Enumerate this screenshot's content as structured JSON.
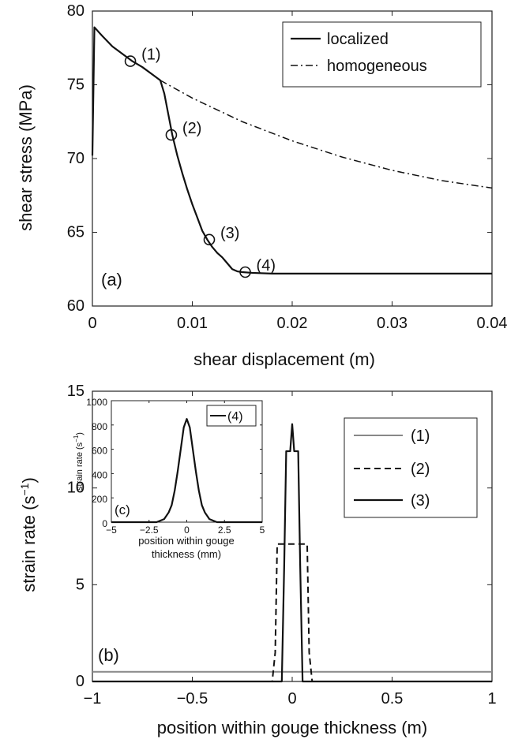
{
  "chart_data": [
    {
      "panel": "(a)",
      "type": "line",
      "xlabel": "shear displacement (m)",
      "ylabel": "shear stress (MPa)",
      "xlim": [
        0,
        0.04
      ],
      "ylim": [
        60,
        80
      ],
      "xticks": [
        "0",
        "0.01",
        "0.02",
        "0.03",
        "0.04"
      ],
      "yticks": [
        "60",
        "65",
        "70",
        "75",
        "80"
      ],
      "legend_position": "top-right",
      "series": [
        {
          "name": "localized",
          "style": "solid",
          "x": [
            0,
            0.0002,
            0.001,
            0.002,
            0.003,
            0.004,
            0.005,
            0.006,
            0.0068,
            0.0072,
            0.0076,
            0.008,
            0.0085,
            0.009,
            0.0095,
            0.01,
            0.0105,
            0.011,
            0.0115,
            0.012,
            0.0125,
            0.013,
            0.0135,
            0.014,
            0.0145,
            0.015,
            0.016,
            0.018,
            0.02,
            0.025,
            0.03,
            0.035,
            0.04
          ],
          "y": [
            70.2,
            78.9,
            78.3,
            77.6,
            77.1,
            76.6,
            76.2,
            75.7,
            75.3,
            74.4,
            73.0,
            71.6,
            70.2,
            69.0,
            67.9,
            66.9,
            66.0,
            65.1,
            64.5,
            64.0,
            63.6,
            63.3,
            62.9,
            62.5,
            62.35,
            62.3,
            62.25,
            62.2,
            62.2,
            62.2,
            62.2,
            62.2,
            62.2
          ]
        },
        {
          "name": "homogeneous",
          "style": "dash-dot",
          "x": [
            0.0068,
            0.01,
            0.015,
            0.02,
            0.025,
            0.03,
            0.035,
            0.04
          ],
          "y": [
            75.3,
            74.1,
            72.5,
            71.2,
            70.1,
            69.2,
            68.5,
            68.0
          ]
        }
      ],
      "markers": [
        {
          "label": "(1)",
          "x": 0.0038,
          "y": 76.6
        },
        {
          "label": "(2)",
          "x": 0.0079,
          "y": 71.6
        },
        {
          "label": "(3)",
          "x": 0.0117,
          "y": 64.5
        },
        {
          "label": "(4)",
          "x": 0.0153,
          "y": 62.3
        }
      ]
    },
    {
      "panel": "(b)",
      "type": "line",
      "xlabel": "position within gouge thickness (m)",
      "ylabel": "strain rate (s",
      "ylabel_sup": "−1",
      "ylabel_close": ")",
      "xlim": [
        -1,
        1
      ],
      "ylim": [
        0,
        15
      ],
      "xticks": [
        "−1",
        "−0.5",
        "0",
        "0.5",
        "1"
      ],
      "yticks": [
        "0",
        "5",
        "10",
        "15"
      ],
      "legend_position": "right",
      "series": [
        {
          "name": "(1)",
          "style": "solid-gray",
          "x": [
            -1,
            1
          ],
          "y": [
            0.5,
            0.5
          ]
        },
        {
          "name": "(2)",
          "style": "dashed",
          "x": [
            -1,
            -0.1,
            -0.085,
            -0.075,
            0.075,
            0.085,
            0.1,
            1
          ],
          "y": [
            0,
            0,
            1.5,
            7.1,
            7.1,
            1.5,
            0,
            0
          ]
        },
        {
          "name": "(3)",
          "style": "solid",
          "x": [
            -1,
            -0.052,
            -0.04,
            -0.03,
            -0.01,
            0,
            0.01,
            0.03,
            0.04,
            0.052,
            1
          ],
          "y": [
            0,
            0,
            6,
            11.9,
            11.9,
            13.3,
            11.9,
            11.9,
            6,
            0,
            0
          ]
        }
      ]
    },
    {
      "panel": "(c)",
      "type": "line",
      "inset_of": "(b)",
      "xlabel": "position within gouge thickness (mm)",
      "ylabel": "strain rate (s",
      "ylabel_sup": "−1",
      "ylabel_close": ")",
      "xlim": [
        -5,
        5
      ],
      "ylim": [
        0,
        1000
      ],
      "xticks": [
        "−5",
        "−2.5",
        "0",
        "2.5",
        "5"
      ],
      "yticks": [
        "0",
        "200",
        "400",
        "600",
        "800",
        "1000"
      ],
      "legend_position": "top-right",
      "series": [
        {
          "name": "(4)",
          "style": "solid",
          "x": [
            -5,
            -2,
            -1.5,
            -1.2,
            -1,
            -0.8,
            -0.6,
            -0.4,
            -0.2,
            0,
            0.2,
            0.4,
            0.6,
            0.8,
            1,
            1.2,
            1.5,
            2,
            5
          ],
          "y": [
            0,
            0,
            25,
            80,
            140,
            260,
            420,
            600,
            780,
            850,
            780,
            600,
            420,
            260,
            140,
            80,
            25,
            0,
            0
          ]
        }
      ]
    }
  ]
}
